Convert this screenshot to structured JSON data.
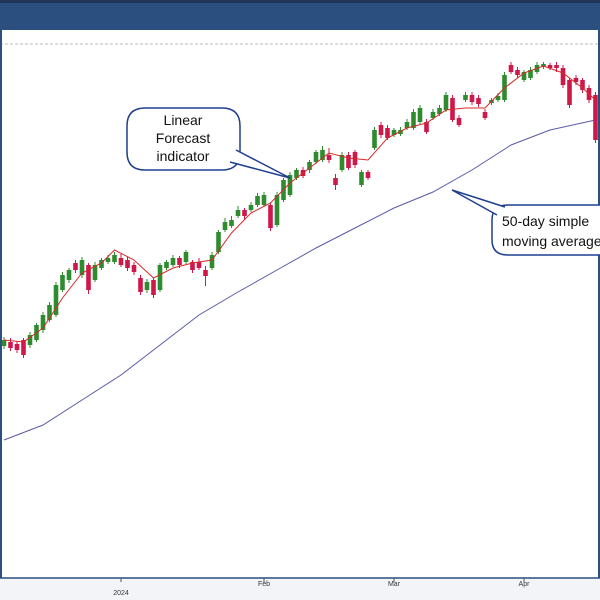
{
  "chart_data": {
    "type": "candlestick",
    "up_color": "#2e8b2e",
    "down_color": "#d0174a",
    "ylim": [
      0,
      548
    ],
    "candles": [
      [
        232,
        241,
        229,
        238
      ],
      [
        236,
        240,
        227,
        230
      ],
      [
        234,
        237,
        225,
        228
      ],
      [
        238,
        240,
        220,
        223
      ],
      [
        233,
        246,
        230,
        243
      ],
      [
        238,
        255,
        236,
        253
      ],
      [
        248,
        266,
        245,
        263
      ],
      [
        258,
        276,
        256,
        273
      ],
      [
        263,
        296,
        261,
        293
      ],
      [
        288,
        306,
        286,
        303
      ],
      [
        298,
        310,
        295,
        308
      ],
      [
        315,
        318,
        305,
        308
      ],
      [
        303,
        321,
        300,
        318
      ],
      [
        313,
        315,
        284,
        288
      ],
      [
        298,
        316,
        296,
        313
      ],
      [
        310,
        320,
        308,
        318
      ],
      [
        316,
        323,
        314,
        320
      ],
      [
        316,
        326,
        314,
        323
      ],
      [
        320,
        324,
        311,
        313
      ],
      [
        318,
        321,
        307,
        310
      ],
      [
        313,
        316,
        303,
        306
      ],
      [
        300,
        303,
        283,
        286
      ],
      [
        288,
        299,
        285,
        296
      ],
      [
        298,
        300,
        280,
        283
      ],
      [
        288,
        315,
        286,
        313
      ],
      [
        310,
        318,
        308,
        316
      ],
      [
        313,
        323,
        311,
        320
      ],
      [
        320,
        322,
        310,
        313
      ],
      [
        316,
        328,
        314,
        326
      ],
      [
        316,
        318,
        305,
        308
      ],
      [
        316,
        320,
        308,
        310
      ],
      [
        308,
        312,
        292,
        302
      ],
      [
        310,
        326,
        308,
        323
      ],
      [
        326,
        348,
        324,
        346
      ],
      [
        348,
        360,
        346,
        356
      ],
      [
        352,
        362,
        350,
        358
      ],
      [
        362,
        372,
        360,
        368
      ],
      [
        368,
        370,
        358,
        362
      ],
      [
        368,
        376,
        366,
        373
      ],
      [
        373,
        385,
        371,
        382
      ],
      [
        373,
        386,
        371,
        383
      ],
      [
        373,
        375,
        347,
        350
      ],
      [
        353,
        386,
        351,
        383
      ],
      [
        378,
        400,
        376,
        398
      ],
      [
        383,
        406,
        381,
        403
      ],
      [
        400,
        410,
        398,
        408
      ],
      [
        408,
        411,
        400,
        402
      ],
      [
        408,
        418,
        405,
        416
      ],
      [
        416,
        428,
        414,
        426
      ],
      [
        418,
        432,
        416,
        428
      ],
      [
        423,
        430,
        415,
        418
      ],
      [
        400,
        404,
        388,
        393
      ],
      [
        408,
        426,
        406,
        423
      ],
      [
        423,
        426,
        408,
        410
      ],
      [
        426,
        428,
        410,
        413
      ],
      [
        393,
        408,
        391,
        406
      ],
      [
        406,
        408,
        398,
        400
      ],
      [
        430,
        451,
        428,
        448
      ],
      [
        453,
        456,
        440,
        443
      ],
      [
        450,
        453,
        438,
        440
      ],
      [
        443,
        450,
        441,
        448
      ],
      [
        444,
        451,
        442,
        448
      ],
      [
        450,
        459,
        448,
        456
      ],
      [
        450,
        469,
        448,
        466
      ],
      [
        456,
        473,
        454,
        470
      ],
      [
        456,
        459,
        444,
        446
      ],
      [
        460,
        469,
        458,
        466
      ],
      [
        464,
        473,
        462,
        470
      ],
      [
        468,
        486,
        466,
        483
      ],
      [
        480,
        483,
        456,
        458
      ],
      [
        460,
        463,
        451,
        453
      ],
      [
        478,
        486,
        476,
        483
      ],
      [
        483,
        486,
        473,
        476
      ],
      [
        480,
        483,
        471,
        474
      ],
      [
        466,
        469,
        458,
        460
      ],
      [
        475,
        480,
        473,
        478
      ],
      [
        478,
        485,
        476,
        482
      ],
      [
        478,
        506,
        476,
        503
      ],
      [
        513,
        516,
        504,
        506
      ],
      [
        508,
        511,
        500,
        503
      ],
      [
        498,
        508,
        496,
        506
      ],
      [
        500,
        511,
        498,
        508
      ],
      [
        506,
        516,
        504,
        513
      ],
      [
        511,
        516,
        509,
        514
      ],
      [
        513,
        515,
        508,
        510
      ],
      [
        513,
        516,
        506,
        510
      ],
      [
        510,
        513,
        490,
        493
      ],
      [
        498,
        500,
        470,
        473
      ],
      [
        500,
        503,
        493,
        496
      ],
      [
        498,
        500,
        485,
        488
      ],
      [
        490,
        493,
        475,
        478
      ],
      [
        483,
        486,
        435,
        438
      ]
    ],
    "forecast": {
      "color": "#d42a2a",
      "index": [
        0,
        3,
        6,
        9,
        12,
        15,
        17,
        20,
        23,
        26,
        29,
        32,
        35,
        38,
        41,
        44,
        47,
        50,
        53,
        56,
        59,
        62,
        65,
        68,
        71,
        74,
        77,
        80,
        83,
        86,
        89,
        91
      ],
      "values": [
        238,
        236,
        250,
        280,
        305,
        315,
        328,
        318,
        300,
        310,
        315,
        318,
        345,
        365,
        375,
        395,
        410,
        425,
        420,
        418,
        440,
        450,
        455,
        468,
        470,
        470,
        490,
        505,
        512,
        505,
        490,
        478
      ]
    },
    "sma": {
      "color": "#5a5aa8",
      "index": [
        0,
        6,
        12,
        18,
        24,
        30,
        36,
        42,
        48,
        54,
        60,
        66,
        72,
        78,
        84,
        91
      ],
      "values": [
        138,
        153,
        178,
        203,
        233,
        263,
        286,
        308,
        330,
        350,
        370,
        386,
        408,
        433,
        448,
        458
      ]
    },
    "x_labels": [
      {
        "label": "Feb",
        "index": 40
      },
      {
        "label": "Mar",
        "index": 60
      },
      {
        "label": "Apr",
        "index": 80
      }
    ],
    "year_label": {
      "label": "2024",
      "index": 18
    },
    "annotations": [
      {
        "lines": [
          "Linear",
          "Forecast",
          "indicator"
        ]
      },
      {
        "lines": [
          "50-day simple",
          "moving average"
        ]
      }
    ]
  }
}
